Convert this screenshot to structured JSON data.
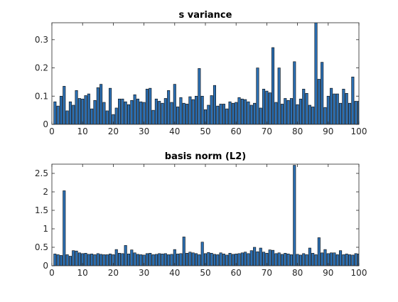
{
  "chart_data": [
    {
      "type": "bar",
      "title": "s variance",
      "xlabel": "",
      "ylabel": "",
      "xlim": [
        0,
        100
      ],
      "ylim": [
        0,
        0.36
      ],
      "xticks": [
        "0",
        "10",
        "20",
        "30",
        "40",
        "50",
        "60",
        "70",
        "80",
        "90",
        "100"
      ],
      "yticks": [
        "0",
        "0.1",
        "0.2",
        "0.3"
      ],
      "grid": false,
      "bar_color": "#2b6fb3",
      "x": [
        1,
        2,
        3,
        4,
        5,
        6,
        7,
        8,
        9,
        10,
        11,
        12,
        13,
        14,
        15,
        16,
        17,
        18,
        19,
        20,
        21,
        22,
        23,
        24,
        25,
        26,
        27,
        28,
        29,
        30,
        31,
        32,
        33,
        34,
        35,
        36,
        37,
        38,
        39,
        40,
        41,
        42,
        43,
        44,
        45,
        46,
        47,
        48,
        49,
        50,
        51,
        52,
        53,
        54,
        55,
        56,
        57,
        58,
        59,
        60,
        61,
        62,
        63,
        64,
        65,
        66,
        67,
        68,
        69,
        70,
        71,
        72,
        73,
        74,
        75,
        76,
        77,
        78,
        79,
        80,
        81,
        82,
        83,
        84,
        85,
        86,
        87,
        88,
        89,
        90,
        91,
        92,
        93,
        94,
        95,
        96,
        97,
        98,
        99,
        100
      ],
      "values": [
        0.08,
        0.065,
        0.1,
        0.135,
        0.048,
        0.08,
        0.068,
        0.12,
        0.092,
        0.09,
        0.102,
        0.108,
        0.055,
        0.085,
        0.13,
        0.142,
        0.078,
        0.048,
        0.128,
        0.035,
        0.058,
        0.09,
        0.09,
        0.08,
        0.07,
        0.085,
        0.105,
        0.09,
        0.08,
        0.078,
        0.125,
        0.128,
        0.05,
        0.09,
        0.082,
        0.075,
        0.092,
        0.12,
        0.078,
        0.142,
        0.062,
        0.095,
        0.075,
        0.072,
        0.098,
        0.088,
        0.1,
        0.198,
        0.1,
        0.052,
        0.068,
        0.102,
        0.138,
        0.065,
        0.072,
        0.072,
        0.055,
        0.08,
        0.075,
        0.078,
        0.095,
        0.09,
        0.088,
        0.08,
        0.068,
        0.075,
        0.2,
        0.058,
        0.125,
        0.118,
        0.112,
        0.272,
        0.078,
        0.2,
        0.072,
        0.092,
        0.085,
        0.092,
        0.222,
        0.07,
        0.09,
        0.125,
        0.11,
        0.068,
        0.062,
        0.362,
        0.16,
        0.22,
        0.06,
        0.1,
        0.128,
        0.108,
        0.108,
        0.075,
        0.125,
        0.11,
        0.075,
        0.168,
        0.082,
        0.082
      ]
    },
    {
      "type": "bar",
      "title": "basis norm (L2)",
      "xlabel": "",
      "ylabel": "",
      "xlim": [
        0,
        100
      ],
      "ylim": [
        0,
        2.75
      ],
      "xticks": [
        "0",
        "10",
        "20",
        "30",
        "40",
        "50",
        "60",
        "70",
        "80",
        "90",
        "100"
      ],
      "yticks": [
        "0",
        "0.5",
        "1",
        "1.5",
        "2",
        "2.5"
      ],
      "grid": false,
      "bar_color": "#2b6fb3",
      "x": [
        1,
        2,
        3,
        4,
        5,
        6,
        7,
        8,
        9,
        10,
        11,
        12,
        13,
        14,
        15,
        16,
        17,
        18,
        19,
        20,
        21,
        22,
        23,
        24,
        25,
        26,
        27,
        28,
        29,
        30,
        31,
        32,
        33,
        34,
        35,
        36,
        37,
        38,
        39,
        40,
        41,
        42,
        43,
        44,
        45,
        46,
        47,
        48,
        49,
        50,
        51,
        52,
        53,
        54,
        55,
        56,
        57,
        58,
        59,
        60,
        61,
        62,
        63,
        64,
        65,
        66,
        67,
        68,
        69,
        70,
        71,
        72,
        73,
        74,
        75,
        76,
        77,
        78,
        79,
        80,
        81,
        82,
        83,
        84,
        85,
        86,
        87,
        88,
        89,
        90,
        91,
        92,
        93,
        94,
        95,
        96,
        97,
        98,
        99,
        100
      ],
      "values": [
        0.32,
        0.3,
        0.28,
        2.03,
        0.3,
        0.26,
        0.41,
        0.4,
        0.35,
        0.33,
        0.34,
        0.31,
        0.32,
        0.3,
        0.33,
        0.31,
        0.3,
        0.3,
        0.32,
        0.3,
        0.44,
        0.34,
        0.33,
        0.55,
        0.32,
        0.43,
        0.35,
        0.31,
        0.3,
        0.29,
        0.33,
        0.34,
        0.3,
        0.31,
        0.33,
        0.32,
        0.33,
        0.3,
        0.31,
        0.44,
        0.32,
        0.33,
        0.78,
        0.34,
        0.37,
        0.35,
        0.33,
        0.3,
        0.64,
        0.33,
        0.36,
        0.34,
        0.31,
        0.3,
        0.35,
        0.32,
        0.29,
        0.34,
        0.31,
        0.32,
        0.33,
        0.35,
        0.37,
        0.33,
        0.41,
        0.5,
        0.38,
        0.48,
        0.37,
        0.34,
        0.43,
        0.42,
        0.33,
        0.35,
        0.31,
        0.34,
        0.32,
        0.3,
        2.72,
        0.31,
        0.29,
        0.33,
        0.3,
        0.48,
        0.34,
        0.3,
        0.76,
        0.35,
        0.44,
        0.33,
        0.35,
        0.35,
        0.3,
        0.41,
        0.3,
        0.32,
        0.3,
        0.29,
        0.33,
        0.32
      ]
    }
  ]
}
